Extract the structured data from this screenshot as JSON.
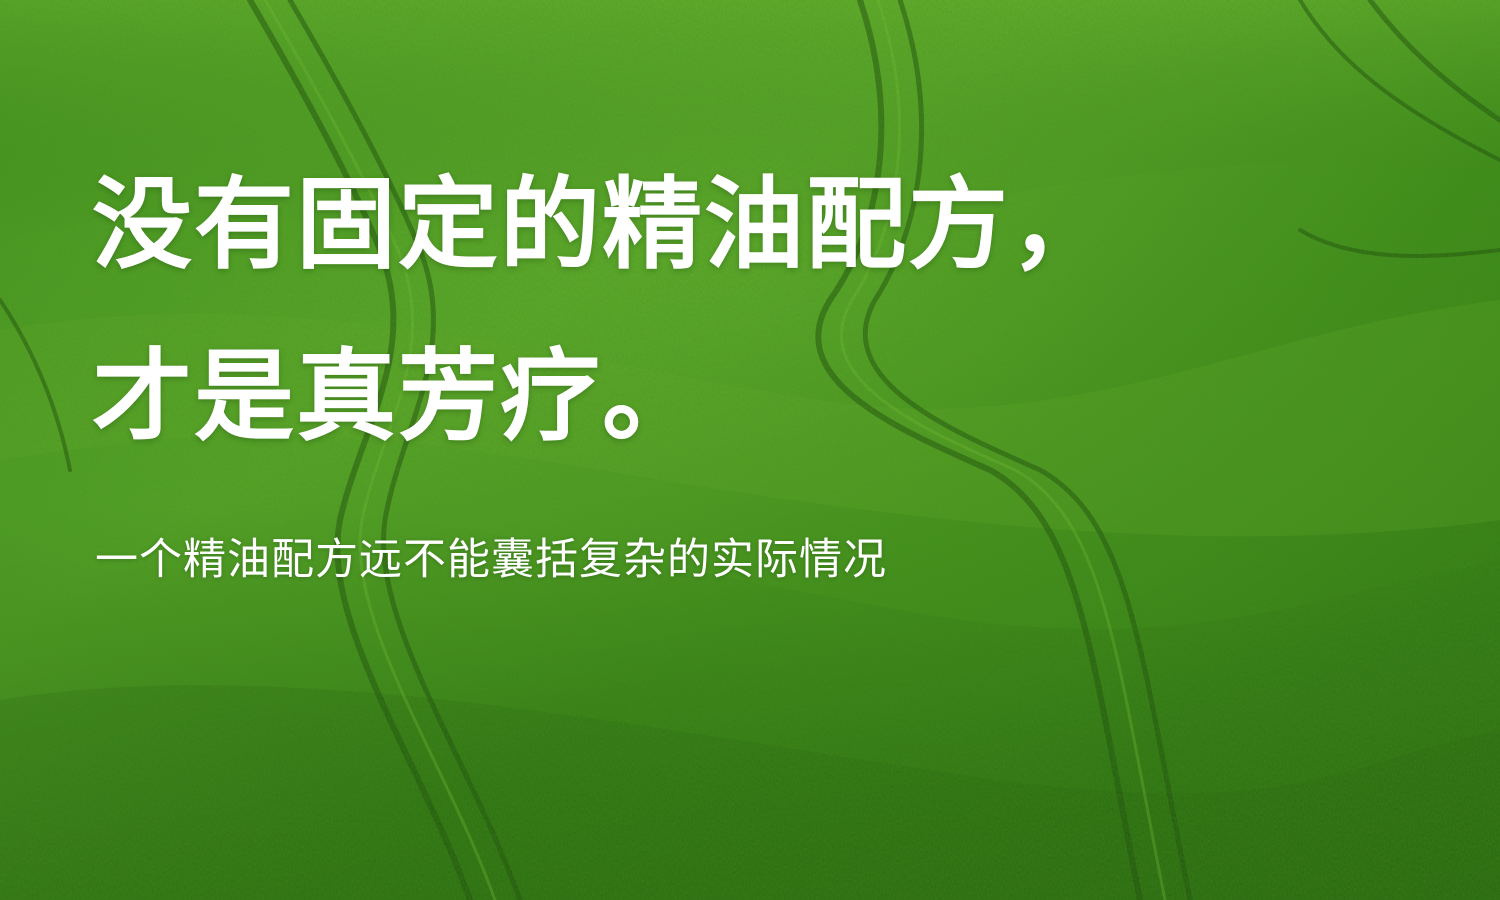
{
  "background": {
    "description_icon": "grass-field-photo",
    "colors": {
      "light_green": "#5db02a",
      "mid_green": "#3c8f1a",
      "dark_green": "#1f5e0c",
      "track_shadow": "#17480a"
    }
  },
  "hero": {
    "headline_line_1": "没有固定的精油配方，",
    "headline_line_2": "才是真芳疗。",
    "subtitle": "一个精油配方远不能囊括复杂的实际情况",
    "text_color": "#ffffff"
  }
}
